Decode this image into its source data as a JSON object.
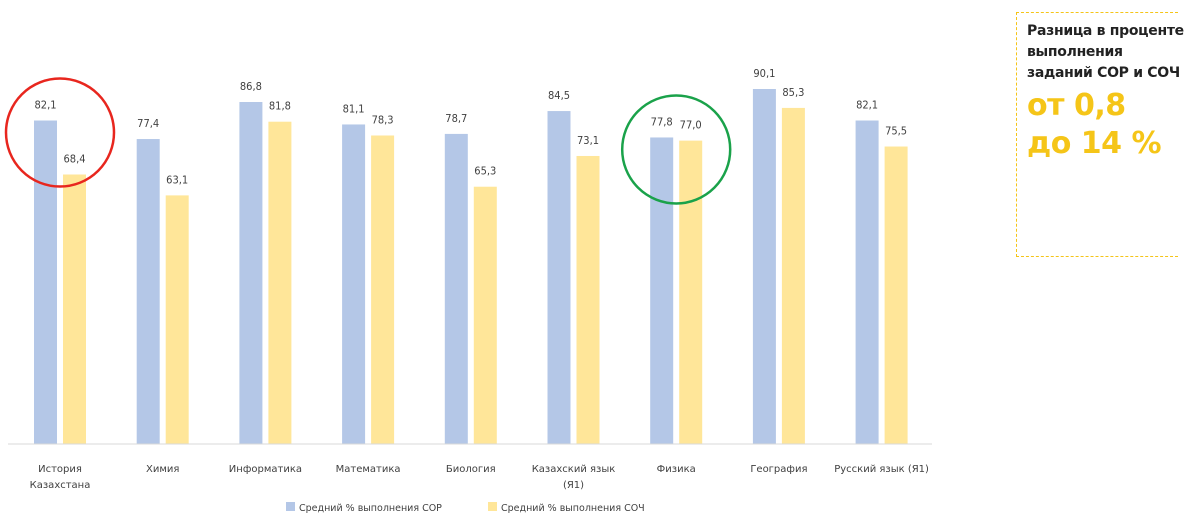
{
  "chart_data": {
    "type": "bar",
    "categories": [
      "История\nКазахстана",
      "Химия",
      "Информатика",
      "Математика",
      "Биология",
      "Казахский язык\n(Я1)",
      "Физика",
      "География",
      "Русский язык (Я1)"
    ],
    "series": [
      {
        "name": "Средний % выполнения СОР",
        "color": "#b4c7e7",
        "values": [
          82.1,
          77.4,
          86.8,
          81.1,
          78.7,
          84.5,
          77.8,
          90.1,
          82.1
        ],
        "labels": [
          "82,1",
          "77,4",
          "86,8",
          "81,1",
          "78,7",
          "84,5",
          "77,8",
          "90,1",
          "82,1"
        ]
      },
      {
        "name": "Средний % выполнения СОЧ",
        "color": "#ffe699",
        "values": [
          68.4,
          63.1,
          81.8,
          78.3,
          65.3,
          73.1,
          77.0,
          85.3,
          75.5
        ],
        "labels": [
          "68,4",
          "63,1",
          "81,8",
          "78,3",
          "65,3",
          "73,1",
          "77,0",
          "85,3",
          "75,5"
        ]
      }
    ],
    "ylim": [
      0,
      100
    ],
    "grid": false,
    "legend": "bottom",
    "annotations": [
      {
        "type": "circle",
        "color": "#e8261e",
        "category": "История\nКазахстана"
      },
      {
        "type": "circle",
        "color": "#1aa24a",
        "category": "Физика"
      }
    ]
  },
  "side_note": {
    "text": "Разница в проценте выполнения заданий СОР и СОЧ",
    "highlight": "от 0,8 до 14 %",
    "accent": "#f5c518"
  }
}
